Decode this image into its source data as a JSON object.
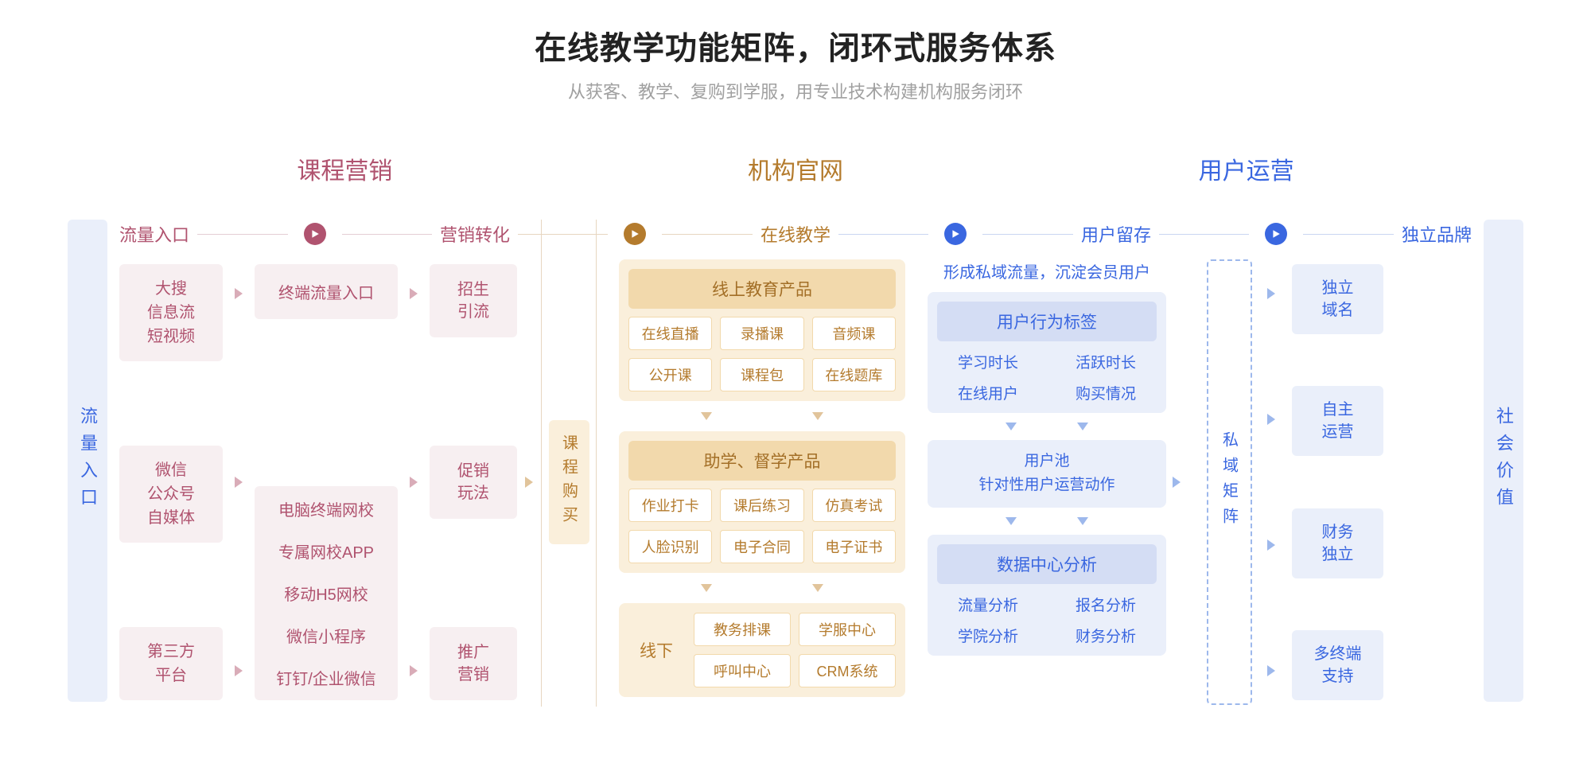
{
  "title": "在线教学功能矩阵，闭环式服务体系",
  "subtitle": "从获客、教学、复购到学服，用专业技术构建机构服务闭环",
  "colors": {
    "red": "#b0536f",
    "red_bg": "#f7eff1",
    "brown": "#b47b2d",
    "brown_bg": "#faefdb",
    "brown_head": "#f2d9ac",
    "blue": "#3a67e0",
    "blue_bg": "#eaeffa",
    "blue_head": "#d4ddf4",
    "subtitle": "#a0a0a0"
  },
  "categories": {
    "c1": "课程营销",
    "c2": "机构官网",
    "c3": "用户运营"
  },
  "stages": {
    "s1": "流量入口",
    "s2": "营销转化",
    "s3": "在线教学",
    "s4": "用户留存",
    "s5": "独立品牌"
  },
  "pillar_left": "流量入口",
  "pillar_right": "社会价值",
  "col1": {
    "a": "大搜\n信息流\n短视频",
    "b": "微信\n公众号\n自媒体",
    "c": "第三方\n平台"
  },
  "col2": {
    "top": "终端流量入口",
    "items": {
      "i1": "电脑终端网校",
      "i2": "专属网校APP",
      "i3": "移动H5网校",
      "i4": "微信小程序",
      "i5": "钉钉/企业微信"
    }
  },
  "col3": {
    "a": "招生\n引流",
    "b": "促销\n玩法",
    "c": "推广\n营销"
  },
  "col4": "课程购买",
  "col5": {
    "panel1": {
      "head": "线上教育产品",
      "chips": {
        "c1": "在线直播",
        "c2": "录播课",
        "c3": "音频课",
        "c4": "公开课",
        "c5": "课程包",
        "c6": "在线题库"
      }
    },
    "panel2": {
      "head": "助学、督学产品",
      "chips": {
        "c1": "作业打卡",
        "c2": "课后练习",
        "c3": "仿真考试",
        "c4": "人脸识别",
        "c5": "电子合同",
        "c6": "电子证书"
      }
    },
    "panel3": {
      "label": "线下",
      "chips": {
        "c1": "教务排课",
        "c2": "学服中心",
        "c3": "呼叫中心",
        "c4": "CRM系统"
      }
    }
  },
  "col6": {
    "note": "形成私域流量，沉淀会员用户",
    "panel1": {
      "head": "用户行为标签",
      "items": {
        "i1": "学习时长",
        "i2": "活跃时长",
        "i3": "在线用户",
        "i4": "购买情况"
      }
    },
    "mid": {
      "line1": "用户池",
      "line2": "针对性用户运营动作"
    },
    "panel2": {
      "head": "数据中心分析",
      "items": {
        "i1": "流量分析",
        "i2": "报名分析",
        "i3": "学院分析",
        "i4": "财务分析"
      }
    }
  },
  "col7": "私域矩阵",
  "col8": {
    "a": "独立\n域名",
    "b": "自主\n运营",
    "c": "财务\n独立",
    "d": "多终端\n支持"
  }
}
